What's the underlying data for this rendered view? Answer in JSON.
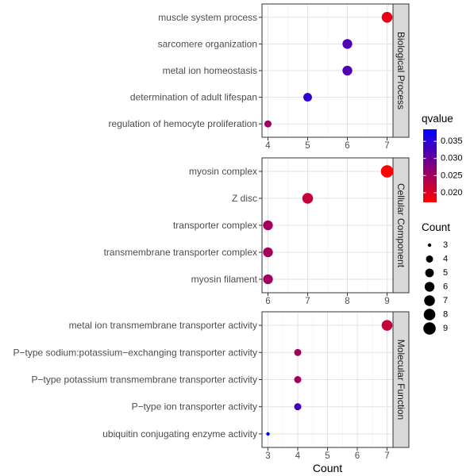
{
  "chart_data": {
    "type": "scatter",
    "xlabel": "Count",
    "panels": [
      {
        "name": "Biological Process",
        "xlim": [
          3.85,
          7.15
        ],
        "xticks": [
          4,
          5,
          6,
          7
        ],
        "terms": [
          {
            "label": "muscle system process",
            "count": 7,
            "qvalue": 0.019
          },
          {
            "label": "sarcomere organization",
            "count": 6,
            "qvalue": 0.032
          },
          {
            "label": "metal ion homeostasis",
            "count": 6,
            "qvalue": 0.032
          },
          {
            "label": "determination of adult lifespan",
            "count": 5,
            "qvalue": 0.0345
          },
          {
            "label": "regulation of hemocyte proliferation",
            "count": 4,
            "qvalue": 0.025
          }
        ]
      },
      {
        "name": "Cellular Component",
        "xlim": [
          5.85,
          9.15
        ],
        "xticks": [
          6,
          7,
          8,
          9
        ],
        "terms": [
          {
            "label": "myosin complex",
            "count": 9,
            "qvalue": 0.0172
          },
          {
            "label": "Z disc",
            "count": 7,
            "qvalue": 0.022
          },
          {
            "label": "transporter complex",
            "count": 6,
            "qvalue": 0.025
          },
          {
            "label": "transmembrane transporter complex",
            "count": 6,
            "qvalue": 0.025
          },
          {
            "label": "myosin filament",
            "count": 6,
            "qvalue": 0.025
          }
        ]
      },
      {
        "name": "Molecular Function",
        "xlim": [
          2.8,
          7.2
        ],
        "xticks": [
          3,
          4,
          5,
          6,
          7
        ],
        "terms": [
          {
            "label": "metal ion transmembrane transporter activity",
            "count": 7,
            "qvalue": 0.022
          },
          {
            "label": "P−type sodium:potassium−exchanging transporter activity",
            "count": 4,
            "qvalue": 0.025
          },
          {
            "label": "P−type potassium transmembrane transporter activity",
            "count": 4,
            "qvalue": 0.025
          },
          {
            "label": "P−type ion transporter activity",
            "count": 4,
            "qvalue": 0.033
          },
          {
            "label": "ubiquitin conjugating enzyme activity",
            "count": 3,
            "qvalue": 0.0385
          }
        ]
      }
    ],
    "color_legend": {
      "title": "qvalue",
      "range": [
        0.0172,
        0.0385
      ],
      "breaks": [
        0.035,
        0.03,
        0.025,
        0.02
      ],
      "break_labels": [
        "0.035",
        "0.030",
        "0.025",
        "0.020"
      ],
      "low_color": "#ff0000",
      "high_color": "#0000ff",
      "placement": "right"
    },
    "size_legend": {
      "title": "Count",
      "values": [
        3,
        4,
        5,
        6,
        7,
        8,
        9
      ],
      "placement": "right"
    },
    "grid": true
  }
}
